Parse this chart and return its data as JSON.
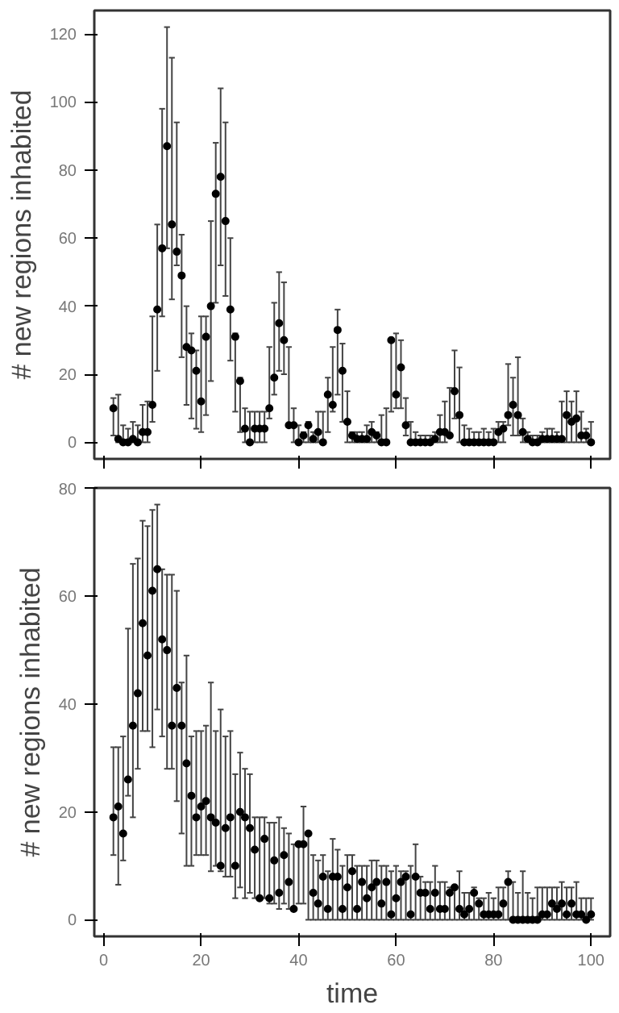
{
  "chart_data": [
    {
      "type": "scatter",
      "ylabel": "# new regions inhabited",
      "marker": "circle",
      "color": "#000000",
      "tick_labels": "y",
      "grid": false,
      "xlim": [
        -1.92,
        103.92
      ],
      "xticks": [
        0,
        20,
        40,
        60,
        80,
        100
      ],
      "ylim": [
        -4.88,
        126.88
      ],
      "yticks": [
        0,
        20,
        40,
        60,
        80,
        100,
        120
      ],
      "x": [
        2,
        3,
        4,
        5,
        6,
        7,
        8,
        9,
        10,
        11,
        12,
        13,
        14,
        15,
        16,
        17,
        18,
        19,
        20,
        21,
        22,
        23,
        24,
        25,
        26,
        27,
        28,
        29,
        30,
        31,
        32,
        33,
        34,
        35,
        36,
        37,
        38,
        39,
        40,
        41,
        42,
        43,
        44,
        45,
        46,
        47,
        48,
        49,
        50,
        51,
        52,
        53,
        54,
        55,
        56,
        57,
        58,
        59,
        60,
        61,
        62,
        63,
        64,
        65,
        66,
        67,
        68,
        69,
        70,
        71,
        72,
        73,
        74,
        75,
        76,
        77,
        78,
        79,
        80,
        81,
        82,
        83,
        84,
        85,
        86,
        87,
        88,
        89,
        90,
        91,
        92,
        93,
        94,
        95,
        96,
        97,
        98,
        99,
        100
      ],
      "values": [
        10,
        1,
        0,
        0,
        1,
        0,
        3,
        3,
        11,
        39,
        57,
        87,
        64,
        56,
        49,
        28,
        27,
        21,
        12,
        31,
        40,
        73,
        78,
        65,
        39,
        31,
        18,
        4,
        0,
        4,
        4,
        4,
        10,
        19,
        35,
        30,
        5,
        5,
        0,
        2,
        5,
        1,
        3,
        0,
        14,
        11,
        33,
        21,
        6,
        2,
        1,
        1,
        1,
        3,
        2,
        0,
        0,
        30,
        14,
        22,
        5,
        0,
        0,
        0,
        0,
        0,
        1,
        3,
        3,
        2,
        15,
        8,
        0,
        0,
        0,
        0,
        0,
        0,
        0,
        3,
        4,
        8,
        11,
        8,
        3,
        1,
        0,
        0,
        1,
        1,
        1,
        1,
        1,
        8,
        6,
        7,
        2,
        2,
        0
      ],
      "errors": [
        [
          2,
          13
        ],
        [
          0,
          14
        ],
        [
          0,
          5
        ],
        [
          0,
          4
        ],
        [
          0,
          6
        ],
        [
          0,
          5
        ],
        [
          0,
          11
        ],
        [
          0,
          12
        ],
        [
          6,
          37
        ],
        [
          21,
          64
        ],
        [
          37,
          98
        ],
        [
          57,
          122
        ],
        [
          42,
          113
        ],
        [
          52,
          94
        ],
        [
          25,
          61
        ],
        [
          11,
          40
        ],
        [
          7,
          32
        ],
        [
          4,
          27
        ],
        [
          3,
          37
        ],
        [
          8,
          37
        ],
        [
          18,
          65
        ],
        [
          41,
          88
        ],
        [
          52,
          104
        ],
        [
          43,
          94
        ],
        [
          24,
          60
        ],
        [
          9,
          32
        ],
        [
          3,
          19
        ],
        [
          0,
          10
        ],
        [
          0,
          9
        ],
        [
          0,
          9
        ],
        [
          0,
          9
        ],
        [
          0,
          9
        ],
        [
          7,
          28
        ],
        [
          14,
          41
        ],
        [
          21,
          50
        ],
        [
          20,
          47
        ],
        [
          5,
          28
        ],
        [
          0,
          10
        ],
        [
          0,
          5
        ],
        [
          0,
          3
        ],
        [
          0,
          6
        ],
        [
          0,
          3
        ],
        [
          0,
          9
        ],
        [
          0,
          9
        ],
        [
          3,
          19
        ],
        [
          9,
          28
        ],
        [
          14,
          39
        ],
        [
          6,
          29
        ],
        [
          0,
          15
        ],
        [
          0,
          3
        ],
        [
          0,
          3
        ],
        [
          0,
          3
        ],
        [
          0,
          5
        ],
        [
          0,
          6
        ],
        [
          0,
          3
        ],
        [
          0,
          8
        ],
        [
          0,
          10
        ],
        [
          9,
          30
        ],
        [
          10,
          32
        ],
        [
          10,
          30
        ],
        [
          2,
          13
        ],
        [
          0,
          6
        ],
        [
          0,
          3
        ],
        [
          0,
          2
        ],
        [
          0,
          2
        ],
        [
          0,
          2
        ],
        [
          0,
          3
        ],
        [
          0,
          8
        ],
        [
          0,
          12
        ],
        [
          2,
          16
        ],
        [
          7,
          27
        ],
        [
          0,
          22
        ],
        [
          0,
          5
        ],
        [
          0,
          4
        ],
        [
          0,
          3
        ],
        [
          0,
          3
        ],
        [
          0,
          4
        ],
        [
          0,
          3
        ],
        [
          0,
          4
        ],
        [
          0,
          6
        ],
        [
          0,
          6
        ],
        [
          5,
          23
        ],
        [
          2,
          19
        ],
        [
          2,
          25
        ],
        [
          0,
          7
        ],
        [
          0,
          3
        ],
        [
          0,
          2
        ],
        [
          0,
          2
        ],
        [
          0,
          3
        ],
        [
          0,
          4
        ],
        [
          0,
          4
        ],
        [
          0,
          3
        ],
        [
          0,
          12
        ],
        [
          0,
          15
        ],
        [
          0,
          12
        ],
        [
          0,
          15
        ],
        [
          0,
          9
        ],
        [
          0,
          4
        ],
        [
          0,
          6
        ]
      ]
    },
    {
      "type": "scatter",
      "xlabel": "time",
      "ylabel": "# new regions inhabited",
      "marker": "circle",
      "color": "#000000",
      "grid": false,
      "xlim": [
        -1.92,
        103.92
      ],
      "xticks": [
        0,
        20,
        40,
        60,
        80,
        100
      ],
      "ylim": [
        -3.08,
        80.08
      ],
      "yticks": [
        0,
        20,
        40,
        60,
        80
      ],
      "x": [
        2,
        3,
        4,
        5,
        6,
        7,
        8,
        9,
        10,
        11,
        12,
        13,
        14,
        15,
        16,
        17,
        18,
        19,
        20,
        21,
        22,
        23,
        24,
        25,
        26,
        27,
        28,
        29,
        30,
        31,
        32,
        33,
        34,
        35,
        36,
        37,
        38,
        39,
        40,
        41,
        42,
        43,
        44,
        45,
        46,
        47,
        48,
        49,
        50,
        51,
        52,
        53,
        54,
        55,
        56,
        57,
        58,
        59,
        60,
        61,
        62,
        63,
        64,
        65,
        66,
        67,
        68,
        69,
        70,
        71,
        72,
        73,
        74,
        75,
        76,
        77,
        78,
        79,
        80,
        81,
        82,
        83,
        84,
        85,
        86,
        87,
        88,
        89,
        90,
        91,
        92,
        93,
        94,
        95,
        96,
        97,
        98,
        99,
        100
      ],
      "values": [
        19,
        21,
        16,
        26,
        36,
        42,
        55,
        49,
        61,
        65,
        52,
        50,
        36,
        43,
        36,
        29,
        23,
        19,
        21,
        22,
        19,
        18,
        10,
        17,
        19,
        10,
        20,
        19,
        17,
        13,
        4,
        15,
        4,
        11,
        5,
        12,
        7,
        2,
        14,
        14,
        16,
        5,
        3,
        8,
        2,
        8,
        8,
        2,
        6,
        9,
        2,
        7,
        4,
        6,
        7,
        3,
        7,
        1,
        4,
        7,
        8,
        1,
        8,
        5,
        5,
        2,
        5,
        2,
        2,
        5,
        6,
        2,
        1,
        2,
        5,
        3,
        1,
        1,
        1,
        1,
        3,
        7,
        0,
        0,
        0,
        0,
        0,
        0,
        1,
        1,
        3,
        2,
        3,
        1,
        3,
        1,
        1,
        0,
        1
      ],
      "errors": [
        [
          12,
          32
        ],
        [
          6.5,
          32
        ],
        [
          11,
          34
        ],
        [
          23,
          54
        ],
        [
          19,
          66
        ],
        [
          28,
          67
        ],
        [
          35,
          74
        ],
        [
          35,
          73
        ],
        [
          32,
          76
        ],
        [
          39,
          77
        ],
        [
          34,
          65
        ],
        [
          28,
          64
        ],
        [
          28,
          64
        ],
        [
          22,
          61
        ],
        [
          16,
          44
        ],
        [
          10,
          49
        ],
        [
          10,
          34
        ],
        [
          12,
          35
        ],
        [
          12,
          35
        ],
        [
          12,
          36
        ],
        [
          9,
          44
        ],
        [
          10,
          35
        ],
        [
          9,
          39
        ],
        [
          8,
          34
        ],
        [
          8,
          35
        ],
        [
          4,
          27
        ],
        [
          6,
          31
        ],
        [
          4,
          28
        ],
        [
          5,
          27
        ],
        [
          4,
          19
        ],
        [
          4,
          19
        ],
        [
          4,
          19
        ],
        [
          3,
          18
        ],
        [
          3,
          18
        ],
        [
          2,
          19
        ],
        [
          3,
          17
        ],
        [
          2,
          16
        ],
        [
          2,
          14
        ],
        [
          3,
          14
        ],
        [
          3,
          21
        ],
        [
          0,
          16
        ],
        [
          0,
          12
        ],
        [
          0,
          11
        ],
        [
          0,
          12
        ],
        [
          0,
          9
        ],
        [
          0,
          15
        ],
        [
          0,
          13
        ],
        [
          0,
          10
        ],
        [
          0,
          12
        ],
        [
          0,
          12
        ],
        [
          0,
          10
        ],
        [
          0,
          10
        ],
        [
          0,
          10
        ],
        [
          0,
          11
        ],
        [
          0,
          11
        ],
        [
          0,
          10
        ],
        [
          0,
          10
        ],
        [
          0,
          9
        ],
        [
          0,
          10
        ],
        [
          0,
          9
        ],
        [
          0,
          9
        ],
        [
          0,
          10
        ],
        [
          0,
          14
        ],
        [
          0,
          8
        ],
        [
          0,
          7
        ],
        [
          0,
          7
        ],
        [
          0,
          10
        ],
        [
          0,
          7
        ],
        [
          0,
          7
        ],
        [
          0,
          6
        ],
        [
          0,
          6
        ],
        [
          0,
          9
        ],
        [
          0,
          5
        ],
        [
          0,
          5
        ],
        [
          0,
          6
        ],
        [
          0,
          4
        ],
        [
          0,
          4
        ],
        [
          0,
          5
        ],
        [
          0,
          4
        ],
        [
          0,
          6
        ],
        [
          0,
          6
        ],
        [
          0,
          9
        ],
        [
          0,
          7
        ],
        [
          0,
          5
        ],
        [
          0,
          9
        ],
        [
          0,
          5
        ],
        [
          0,
          4
        ],
        [
          0,
          6
        ],
        [
          0,
          6
        ],
        [
          0,
          6
        ],
        [
          0,
          6
        ],
        [
          0,
          6
        ],
        [
          0,
          7
        ],
        [
          0,
          6
        ],
        [
          0,
          6
        ],
        [
          0,
          7
        ],
        [
          0,
          4
        ],
        [
          0,
          4
        ],
        [
          0,
          4
        ]
      ]
    }
  ]
}
